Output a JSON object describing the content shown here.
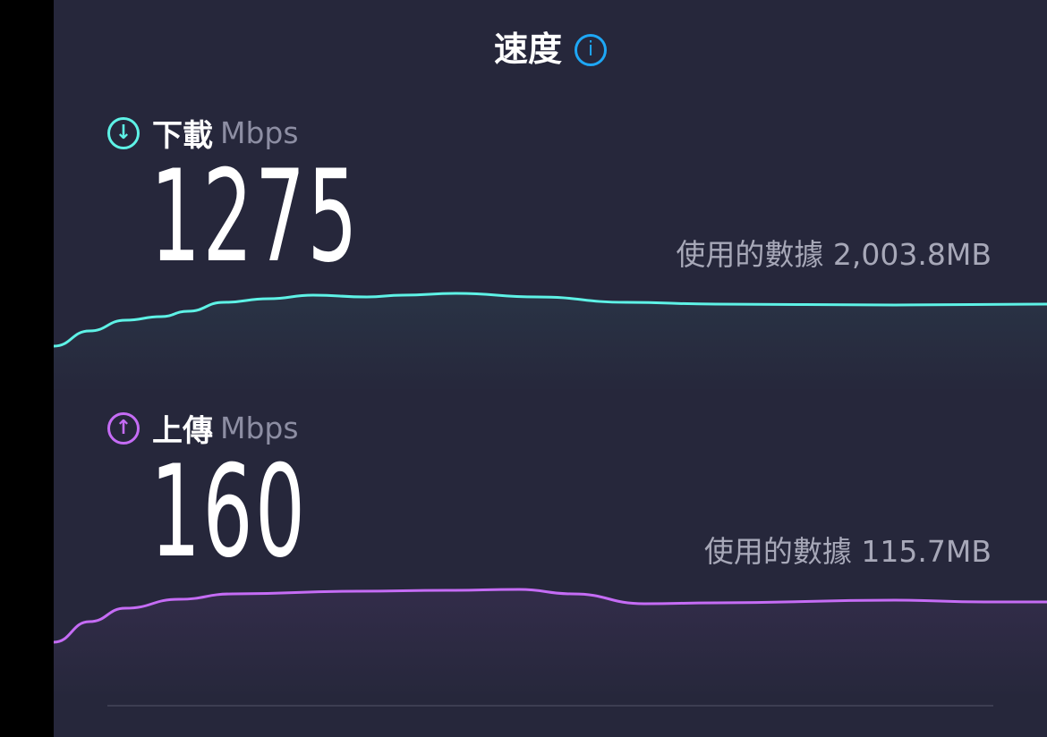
{
  "header": {
    "title": "速度",
    "info_icon": "info-icon"
  },
  "download": {
    "label": "下載",
    "unit": "Mbps",
    "value": "1275",
    "data_used_label": "使用的數據",
    "data_used": "2,003.8MB",
    "color": "#5ef2e6",
    "icon": "arrow-down-circle-icon"
  },
  "upload": {
    "label": "上傳",
    "unit": "Mbps",
    "value": "160",
    "data_used_label": "使用的數據",
    "data_used": "115.7MB",
    "color": "#c56cf5",
    "icon": "arrow-up-circle-icon"
  }
}
